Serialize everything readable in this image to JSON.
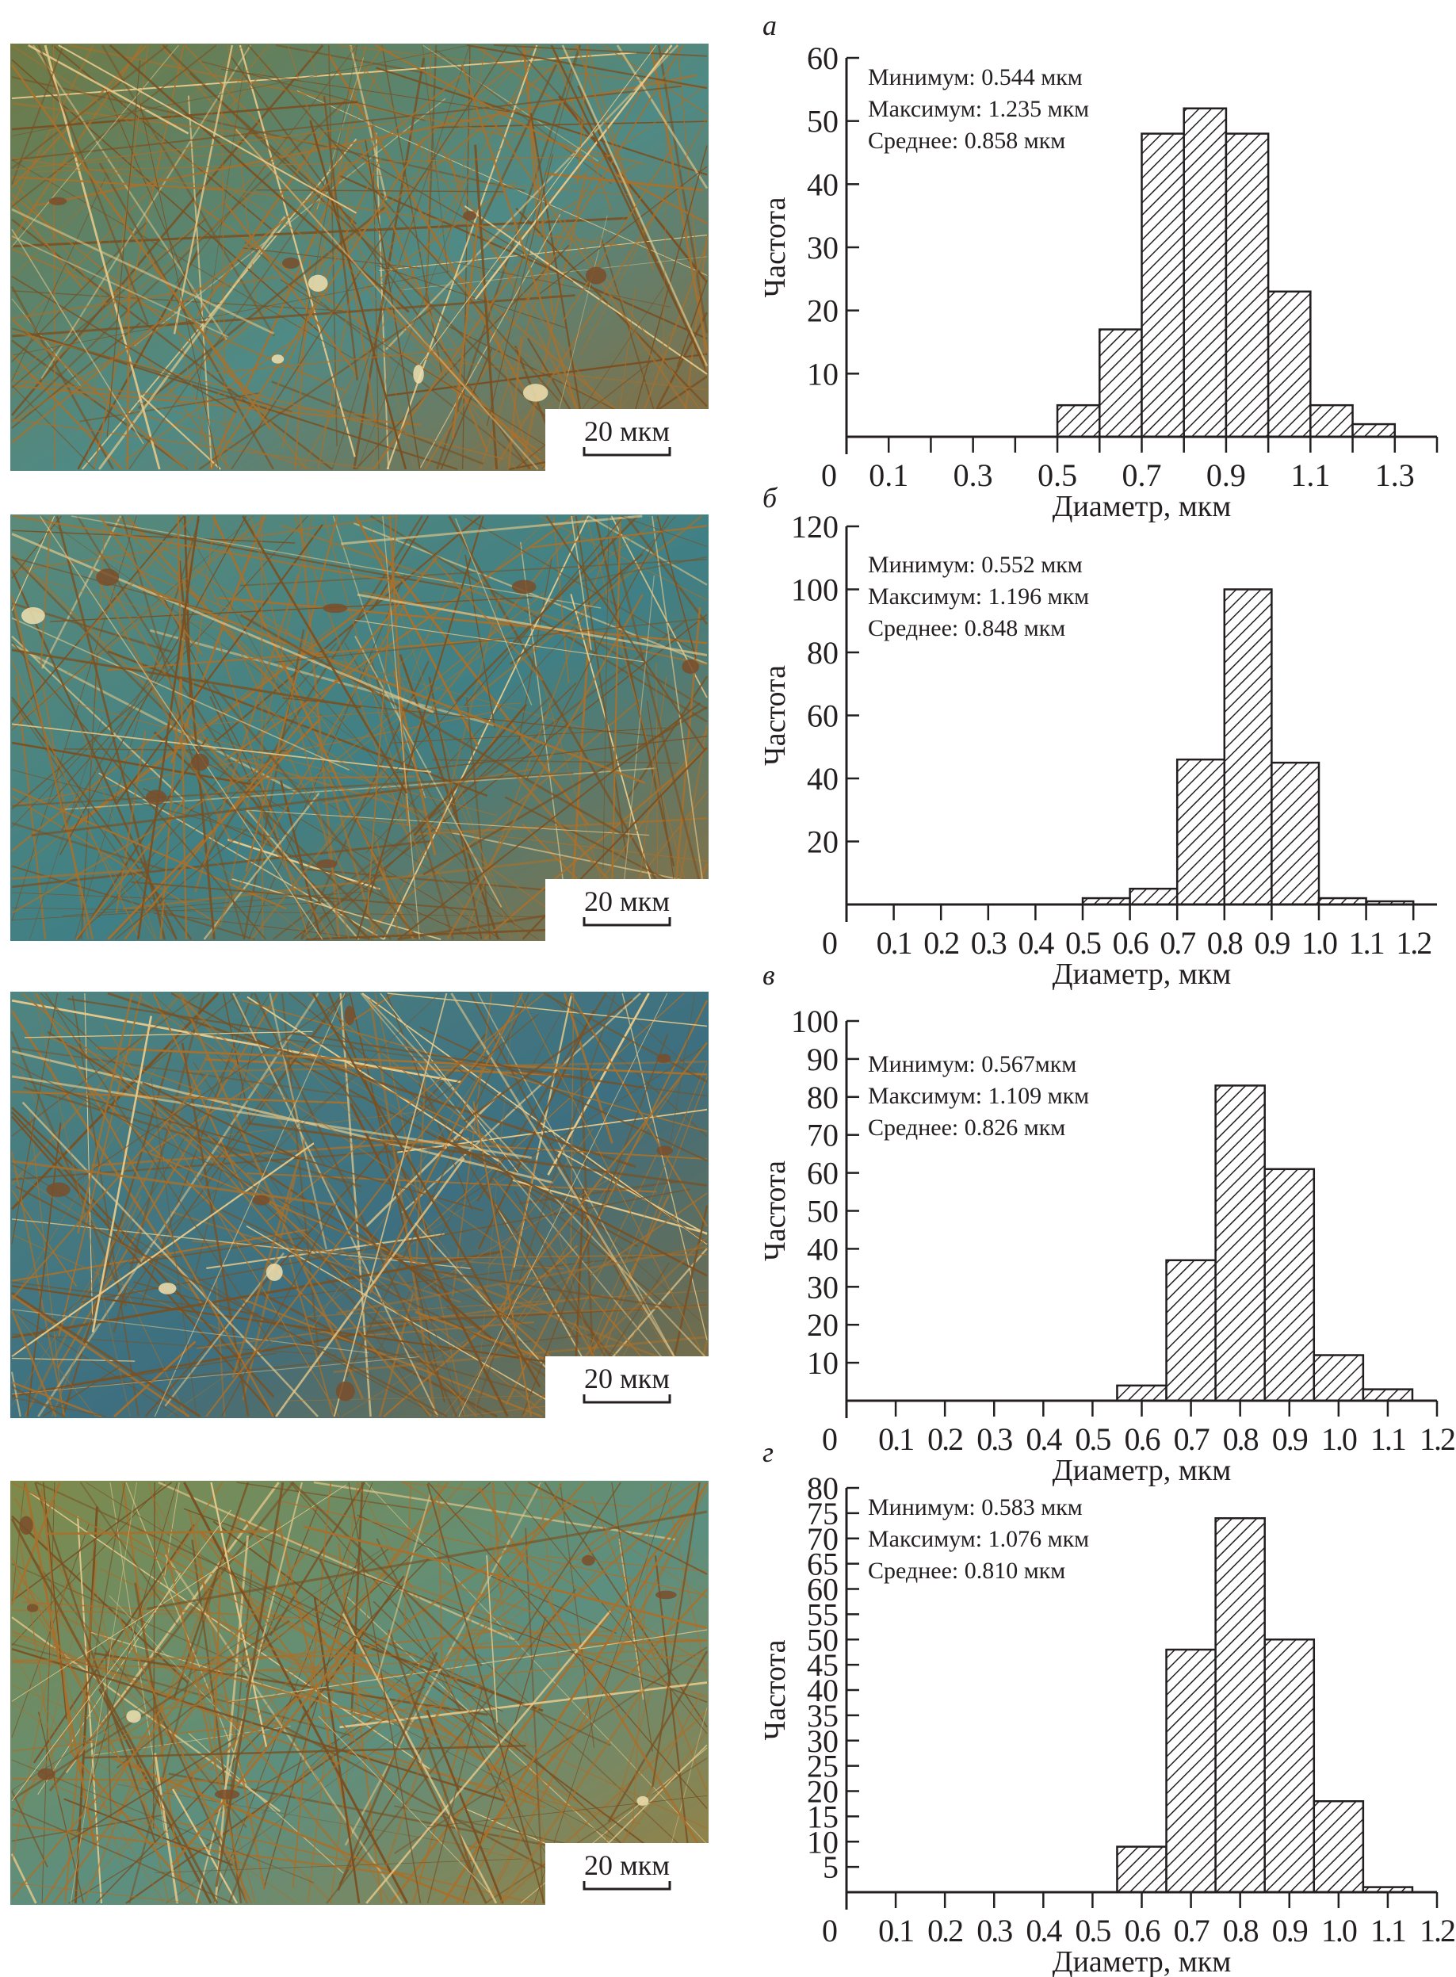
{
  "micrographs": [
    {
      "panel": "а",
      "scale_bar": "20 мкм",
      "tint": [
        "#6f7a45",
        "#4f8a86",
        "#8a6a3a"
      ]
    },
    {
      "panel": "б",
      "scale_bar": "20 мкм",
      "tint": [
        "#5a8a7a",
        "#3f7f85",
        "#8a7040"
      ]
    },
    {
      "panel": "в",
      "scale_bar": "20 мкм",
      "tint": [
        "#4f8580",
        "#3d6f80",
        "#7d6c40"
      ]
    },
    {
      "panel": "г",
      "scale_bar": "20 мкм",
      "tint": [
        "#7f8a4a",
        "#5c8f80",
        "#9a8040"
      ]
    }
  ],
  "colors": {
    "fiber": "#a8702c",
    "bar_stroke": "#231f20",
    "hatch": "#231f20"
  },
  "chart_data": [
    {
      "type": "bar",
      "panel_label": "а",
      "xlabel": "Диаметр, мкм",
      "ylabel": "Частота",
      "xlim": [
        0,
        1.4
      ],
      "ylim": [
        0,
        60
      ],
      "x_ticks": [
        0.1,
        0.2,
        0.3,
        0.4,
        0.5,
        0.6,
        0.7,
        0.8,
        0.9,
        1.0,
        1.1,
        1.2,
        1.3,
        1.4
      ],
      "x_tick_labels": [
        {
          "v": 0,
          "t": "0"
        },
        {
          "v": 0.1,
          "t": "0.1"
        },
        {
          "v": 0.3,
          "t": "0.3"
        },
        {
          "v": 0.5,
          "t": "0.5"
        },
        {
          "v": 0.7,
          "t": "0.7"
        },
        {
          "v": 0.9,
          "t": "0.9"
        },
        {
          "v": 1.1,
          "t": "1.1"
        },
        {
          "v": 1.3,
          "t": "1.3"
        }
      ],
      "y_ticks": [
        {
          "v": 10,
          "t": "10"
        },
        {
          "v": 20,
          "t": "20"
        },
        {
          "v": 30,
          "t": "30"
        },
        {
          "v": 40,
          "t": "40"
        },
        {
          "v": 50,
          "t": "50"
        },
        {
          "v": 60,
          "t": "60"
        }
      ],
      "bin_width": 0.1,
      "bins": [
        0.5,
        0.6,
        0.7,
        0.8,
        0.9,
        1.0,
        1.1,
        1.2
      ],
      "values": [
        5,
        17,
        48,
        52,
        48,
        23,
        5,
        2
      ],
      "stats": [
        "Минимум: 0.544 мкм",
        "Максимум: 1.235 мкм",
        "Среднее: 0.858 мкм"
      ],
      "grid": false
    },
    {
      "type": "bar",
      "panel_label": "б",
      "xlabel": "Диаметр, мкм",
      "ylabel": "Частота",
      "xlim": [
        0,
        1.25
      ],
      "ylim": [
        0,
        120
      ],
      "x_ticks": [
        0.1,
        0.2,
        0.3,
        0.4,
        0.5,
        0.6,
        0.7,
        0.8,
        0.9,
        1.0,
        1.1,
        1.2
      ],
      "x_tick_labels": [
        {
          "v": 0,
          "t": "0"
        },
        {
          "v": 0.1,
          "t": "0.1"
        },
        {
          "v": 0.2,
          "t": "0.2"
        },
        {
          "v": 0.3,
          "t": "0.3"
        },
        {
          "v": 0.4,
          "t": "0.4"
        },
        {
          "v": 0.5,
          "t": "0.5"
        },
        {
          "v": 0.6,
          "t": "0.6"
        },
        {
          "v": 0.7,
          "t": "0.7"
        },
        {
          "v": 0.8,
          "t": "0.8"
        },
        {
          "v": 0.9,
          "t": "0.9"
        },
        {
          "v": 1.0,
          "t": "1.0"
        },
        {
          "v": 1.1,
          "t": "1.1"
        },
        {
          "v": 1.2,
          "t": "1.2"
        }
      ],
      "y_ticks": [
        {
          "v": 20,
          "t": "20"
        },
        {
          "v": 40,
          "t": "40"
        },
        {
          "v": 60,
          "t": "60"
        },
        {
          "v": 80,
          "t": "80"
        },
        {
          "v": 100,
          "t": "100"
        },
        {
          "v": 120,
          "t": "120"
        }
      ],
      "bin_width": 0.1,
      "bins": [
        0.5,
        0.6,
        0.7,
        0.8,
        0.9,
        1.0,
        1.1
      ],
      "values": [
        2,
        5,
        46,
        100,
        45,
        2,
        1
      ],
      "stats": [
        "Минимум: 0.552 мкм",
        "Максимум: 1.196 мкм",
        "Среднее: 0.848 мкм"
      ],
      "grid": false
    },
    {
      "type": "bar",
      "panel_label": "в",
      "xlabel": "Диаметр, мкм",
      "ylabel": "Частота",
      "xlim": [
        0,
        1.2
      ],
      "ylim": [
        0,
        100
      ],
      "x_ticks": [
        0.1,
        0.2,
        0.3,
        0.4,
        0.5,
        0.6,
        0.7,
        0.8,
        0.9,
        1.0,
        1.1,
        1.2
      ],
      "x_tick_labels": [
        {
          "v": 0,
          "t": "0"
        },
        {
          "v": 0.1,
          "t": "0.1"
        },
        {
          "v": 0.2,
          "t": "0.2"
        },
        {
          "v": 0.3,
          "t": "0.3"
        },
        {
          "v": 0.4,
          "t": "0.4"
        },
        {
          "v": 0.5,
          "t": "0.5"
        },
        {
          "v": 0.6,
          "t": "0.6"
        },
        {
          "v": 0.7,
          "t": "0.7"
        },
        {
          "v": 0.8,
          "t": "0.8"
        },
        {
          "v": 0.9,
          "t": "0.9"
        },
        {
          "v": 1.0,
          "t": "1.0"
        },
        {
          "v": 1.1,
          "t": "1.1"
        },
        {
          "v": 1.2,
          "t": "1.2"
        }
      ],
      "y_ticks": [
        {
          "v": 10,
          "t": "10"
        },
        {
          "v": 20,
          "t": "20"
        },
        {
          "v": 30,
          "t": "30"
        },
        {
          "v": 40,
          "t": "40"
        },
        {
          "v": 50,
          "t": "50"
        },
        {
          "v": 60,
          "t": "60"
        },
        {
          "v": 70,
          "t": "70"
        },
        {
          "v": 80,
          "t": "80"
        },
        {
          "v": 90,
          "t": "90"
        },
        {
          "v": 100,
          "t": "100"
        }
      ],
      "bin_width": 0.1,
      "bins": [
        0.55,
        0.65,
        0.75,
        0.85,
        0.95,
        1.05
      ],
      "values": [
        4,
        37,
        83,
        61,
        12,
        3
      ],
      "stats": [
        "Минимум: 0.567мкм",
        "Максимум: 1.109 мкм",
        "Среднее: 0.826 мкм"
      ],
      "grid": false
    },
    {
      "type": "bar",
      "panel_label": "г",
      "xlabel": "Диаметр, мкм",
      "ylabel": "Частота",
      "xlim": [
        0,
        1.2
      ],
      "ylim": [
        0,
        80
      ],
      "x_ticks": [
        0.1,
        0.2,
        0.3,
        0.4,
        0.5,
        0.6,
        0.7,
        0.8,
        0.9,
        1.0,
        1.1,
        1.2
      ],
      "x_tick_labels": [
        {
          "v": 0,
          "t": "0"
        },
        {
          "v": 0.1,
          "t": "0.1"
        },
        {
          "v": 0.2,
          "t": "0.2"
        },
        {
          "v": 0.3,
          "t": "0.3"
        },
        {
          "v": 0.4,
          "t": "0.4"
        },
        {
          "v": 0.5,
          "t": "0.5"
        },
        {
          "v": 0.6,
          "t": "0.6"
        },
        {
          "v": 0.7,
          "t": "0.7"
        },
        {
          "v": 0.8,
          "t": "0.8"
        },
        {
          "v": 0.9,
          "t": "0.9"
        },
        {
          "v": 1.0,
          "t": "1.0"
        },
        {
          "v": 1.1,
          "t": "1.1"
        },
        {
          "v": 1.2,
          "t": "1.2"
        }
      ],
      "y_ticks": [
        {
          "v": 5,
          "t": "5"
        },
        {
          "v": 10,
          "t": "10"
        },
        {
          "v": 15,
          "t": "15"
        },
        {
          "v": 20,
          "t": "20"
        },
        {
          "v": 25,
          "t": "25"
        },
        {
          "v": 30,
          "t": "30"
        },
        {
          "v": 35,
          "t": "35"
        },
        {
          "v": 40,
          "t": "40"
        },
        {
          "v": 45,
          "t": "45"
        },
        {
          "v": 50,
          "t": "50"
        },
        {
          "v": 55,
          "t": "55"
        },
        {
          "v": 60,
          "t": "60"
        },
        {
          "v": 65,
          "t": "65"
        },
        {
          "v": 70,
          "t": "70"
        },
        {
          "v": 75,
          "t": "75"
        },
        {
          "v": 80,
          "t": "80"
        }
      ],
      "bin_width": 0.1,
      "bins": [
        0.55,
        0.65,
        0.75,
        0.85,
        0.95,
        1.05
      ],
      "values": [
        9,
        48,
        74,
        50,
        18,
        1
      ],
      "stats": [
        "Минимум: 0.583 мкм",
        "Максимум: 1.076 мкм",
        "Среднее: 0.810 мкм"
      ],
      "grid": false
    }
  ]
}
